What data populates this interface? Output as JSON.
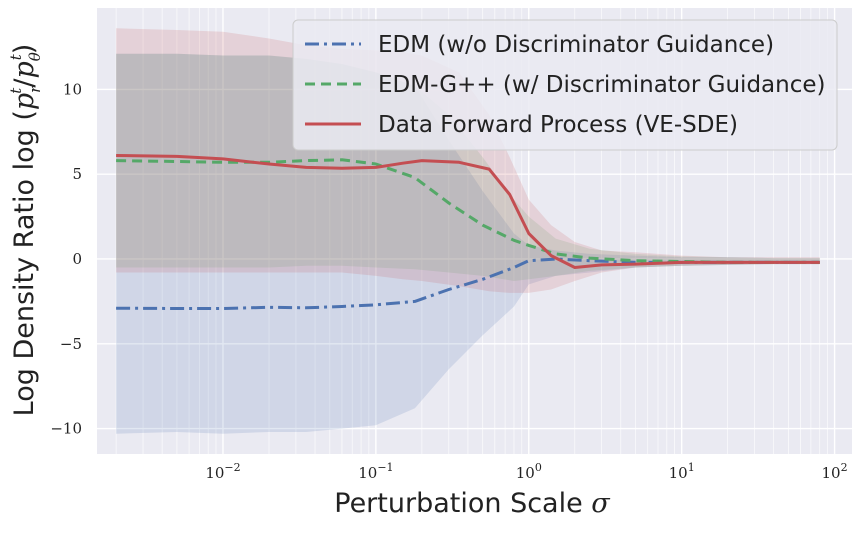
{
  "chart_data": {
    "type": "line",
    "xlabel": "Perturbation Scale σ",
    "ylabel": "Log Density Ratio log (p_r^t / p_θ^t)",
    "ylabel_parts": {
      "prefix": "Log Density Ratio log (",
      "num": "p",
      "num_sub": "r",
      "num_sup": "t",
      "slash": "/",
      "den": "p",
      "den_sub": "θ",
      "den_sup": "t",
      "suffix": ")"
    },
    "xlabel_parts": {
      "text": "Perturbation Scale ",
      "sym": "σ"
    },
    "xscale": "log",
    "xlim": [
      0.0015,
      130
    ],
    "ylim": [
      -11.5,
      14.8
    ],
    "grid": true,
    "legend_position": "top-right",
    "x_ticks": [
      {
        "value": 0.01,
        "base": "10",
        "exp": "−2"
      },
      {
        "value": 0.1,
        "base": "10",
        "exp": "−1"
      },
      {
        "value": 1,
        "base": "10",
        "exp": "0"
      },
      {
        "value": 10,
        "base": "10",
        "exp": "1"
      },
      {
        "value": 100,
        "base": "10",
        "exp": "2"
      }
    ],
    "y_ticks": [
      {
        "value": 10,
        "label": "10"
      },
      {
        "value": 5,
        "label": "5"
      },
      {
        "value": 0,
        "label": "0"
      },
      {
        "value": -5,
        "label": "−5"
      },
      {
        "value": -10,
        "label": "−10"
      }
    ],
    "series": [
      {
        "name": "EDM (w/o Discriminator Guidance)",
        "color": "#4c72b0",
        "dash": "14 5 3 5",
        "x": [
          0.002,
          0.005,
          0.01,
          0.02,
          0.035,
          0.06,
          0.1,
          0.18,
          0.3,
          0.5,
          0.8,
          1.0,
          1.5,
          2.5,
          5,
          10,
          20,
          40,
          80
        ],
        "y": [
          -2.9,
          -2.92,
          -2.92,
          -2.85,
          -2.88,
          -2.8,
          -2.7,
          -2.5,
          -1.8,
          -1.2,
          -0.5,
          -0.1,
          0.0,
          -0.1,
          -0.2,
          -0.2,
          -0.2,
          -0.2,
          -0.2
        ],
        "band_upper": [
          12.1,
          12.1,
          12.0,
          12.0,
          11.8,
          11.5,
          11.0,
          10.2,
          7.0,
          4.0,
          1.5,
          0.8,
          0.5,
          0.3,
          0.2,
          0.1,
          0.1,
          0.05,
          0.05
        ],
        "band_lower": [
          -10.3,
          -10.2,
          -10.3,
          -10.2,
          -10.2,
          -10.0,
          -9.8,
          -8.8,
          -6.5,
          -4.5,
          -2.8,
          -1.5,
          -1.0,
          -0.8,
          -0.5,
          -0.4,
          -0.35,
          -0.3,
          -0.3
        ]
      },
      {
        "name": "EDM-G++ (w/ Discriminator Guidance)",
        "color": "#55a868",
        "dash": "10 6",
        "x": [
          0.002,
          0.005,
          0.01,
          0.02,
          0.035,
          0.06,
          0.1,
          0.18,
          0.3,
          0.5,
          0.8,
          1.0,
          1.5,
          2.5,
          5,
          10,
          20,
          40,
          80
        ],
        "y": [
          5.8,
          5.75,
          5.7,
          5.7,
          5.8,
          5.85,
          5.6,
          4.8,
          3.3,
          2.0,
          1.1,
          0.8,
          0.3,
          0.05,
          -0.1,
          -0.15,
          -0.2,
          -0.2,
          -0.2
        ],
        "band_upper": [
          12.1,
          12.1,
          12.0,
          12.0,
          11.8,
          11.5,
          11.0,
          10.2,
          8.5,
          6.0,
          3.5,
          2.5,
          1.2,
          0.6,
          0.3,
          0.15,
          0.1,
          0.05,
          0.05
        ],
        "band_lower": [
          -0.5,
          -0.5,
          -0.5,
          -0.5,
          -0.4,
          -0.4,
          -0.5,
          -0.6,
          -0.8,
          -1.0,
          -1.3,
          -1.2,
          -1.0,
          -0.7,
          -0.5,
          -0.4,
          -0.35,
          -0.3,
          -0.3
        ]
      },
      {
        "name": "Data Forward Process (VE-SDE)",
        "color": "#c44e52",
        "dash": "",
        "x": [
          0.002,
          0.005,
          0.01,
          0.02,
          0.035,
          0.06,
          0.1,
          0.15,
          0.2,
          0.35,
          0.55,
          0.75,
          1.0,
          1.4,
          2.0,
          3.0,
          5,
          10,
          20,
          40,
          80
        ],
        "y": [
          6.1,
          6.05,
          5.9,
          5.6,
          5.4,
          5.35,
          5.4,
          5.65,
          5.8,
          5.7,
          5.3,
          3.8,
          1.5,
          0.2,
          -0.5,
          -0.35,
          -0.3,
          -0.2,
          -0.2,
          -0.2,
          -0.2
        ],
        "band_upper": [
          13.6,
          13.5,
          13.4,
          13.0,
          12.6,
          12.4,
          12.3,
          12.2,
          12.0,
          11.0,
          8.5,
          6.0,
          3.5,
          2.0,
          1.0,
          0.5,
          0.4,
          0.2,
          0.1,
          0.1,
          0.1
        ],
        "band_lower": [
          -0.8,
          -0.8,
          -0.8,
          -0.8,
          -0.8,
          -0.8,
          -1.0,
          -1.2,
          -1.3,
          -1.6,
          -1.9,
          -2.0,
          -2.0,
          -1.8,
          -1.3,
          -0.8,
          -0.5,
          -0.4,
          -0.35,
          -0.3,
          -0.3
        ]
      }
    ]
  }
}
